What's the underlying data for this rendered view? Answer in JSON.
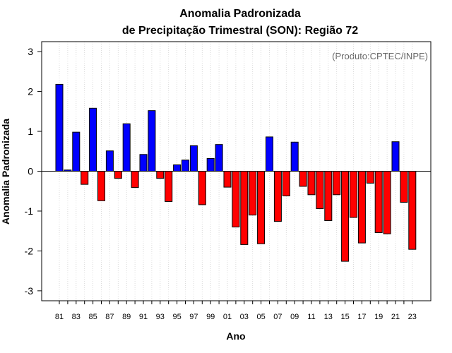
{
  "chart_data": {
    "type": "bar",
    "title_line1": "Anomalia Padronizada",
    "title_line2": "de Precipitação Trimestral (SON): Região 72",
    "xlabel": "Ano",
    "ylabel": "Anomalia Padronizada",
    "annotation": "(Produto:CPTEC/INPE)",
    "ylim": [
      -3.25,
      3.25
    ],
    "yticks": [
      -3,
      -2,
      -1,
      0,
      1,
      2,
      3
    ],
    "ytick_labels": [
      "-3",
      "-2",
      "-1",
      "0",
      "1",
      "2",
      "3"
    ],
    "categories": [
      1981,
      1982,
      1983,
      1984,
      1985,
      1986,
      1987,
      1988,
      1989,
      1990,
      1991,
      1992,
      1993,
      1994,
      1995,
      1996,
      1997,
      1998,
      1999,
      2000,
      2001,
      2002,
      2003,
      2004,
      2005,
      2006,
      2007,
      2008,
      2009,
      2010,
      2011,
      2012,
      2013,
      2014,
      2015,
      2016,
      2017,
      2018,
      2019,
      2020,
      2021,
      2022,
      2023
    ],
    "xtick_labels": [
      "81",
      "83",
      "85",
      "87",
      "89",
      "91",
      "93",
      "95",
      "97",
      "99",
      "01",
      "03",
      "05",
      "07",
      "09",
      "11",
      "13",
      "15",
      "17",
      "19",
      "21",
      "23"
    ],
    "values": [
      2.18,
      0.03,
      0.98,
      -0.33,
      1.58,
      -0.74,
      0.51,
      -0.18,
      1.19,
      -0.41,
      0.42,
      1.52,
      -0.18,
      -0.76,
      0.16,
      0.28,
      0.64,
      -0.84,
      0.32,
      0.67,
      -0.4,
      -1.4,
      -1.84,
      -1.1,
      -1.82,
      0.86,
      -1.26,
      -0.62,
      0.73,
      -0.38,
      -0.59,
      -0.94,
      -1.24,
      -0.59,
      -2.26,
      -1.16,
      -1.8,
      -0.3,
      -1.54,
      -1.57,
      0.74,
      -0.78,
      -1.96
    ],
    "positive_color": "#0000ff",
    "negative_color": "#ff0000"
  }
}
